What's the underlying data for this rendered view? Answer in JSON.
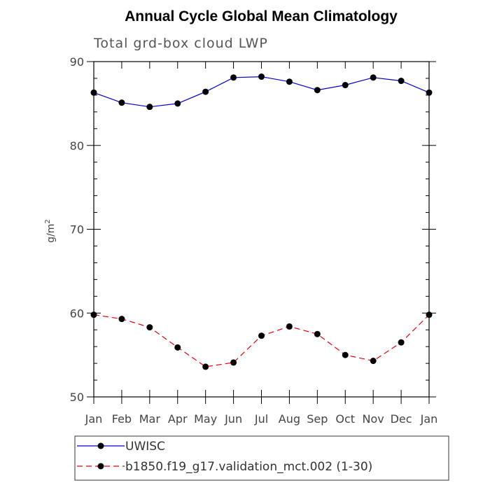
{
  "chart_data": {
    "type": "line",
    "title": "Annual Cycle Global Mean Climatology",
    "subtitle": "Total grd-box cloud LWP",
    "xlabel": "",
    "ylabel": "g/m",
    "ylabel_sup": "2",
    "ylim": [
      50,
      90
    ],
    "yticks": [
      50,
      60,
      70,
      80,
      90
    ],
    "grid": false,
    "categories": [
      "Jan",
      "Feb",
      "Mar",
      "Apr",
      "May",
      "Jun",
      "Jul",
      "Aug",
      "Sep",
      "Oct",
      "Nov",
      "Dec",
      "Jan"
    ],
    "series": [
      {
        "name": "UWISC",
        "color": "#0000cc",
        "dash": "solid",
        "values": [
          86.3,
          85.1,
          84.6,
          85.0,
          86.4,
          88.1,
          88.2,
          87.6,
          86.6,
          87.2,
          88.1,
          87.7,
          86.3
        ]
      },
      {
        "name": "b1850.f19_g17.validation_mct.002 (1-30)",
        "color": "#e8000b",
        "dash": "dashed",
        "values": [
          59.8,
          59.3,
          58.3,
          55.9,
          53.6,
          54.1,
          57.3,
          58.4,
          57.5,
          55.0,
          54.3,
          56.5,
          59.8
        ]
      }
    ],
    "legend_position": "bottom"
  }
}
